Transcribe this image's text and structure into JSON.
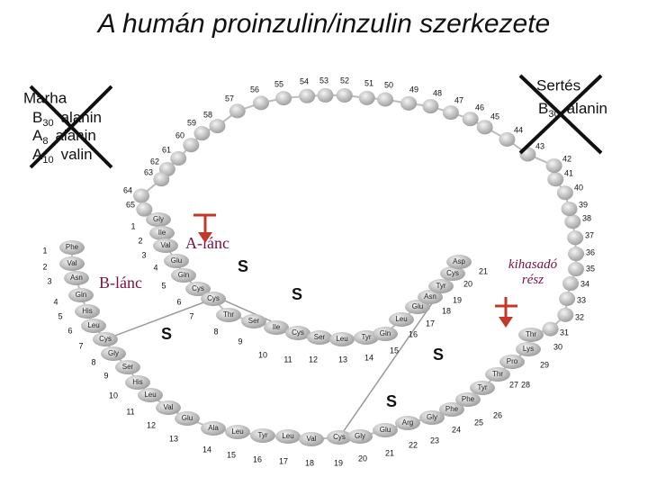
{
  "title": "A humán proinzulin/inzulin szerkezete",
  "notes": {
    "bovine": {
      "title": "Marha",
      "lines": [
        {
          "chain": "B",
          "position": "30",
          "residue": "alanin"
        },
        {
          "chain": "A",
          "position": "8",
          "residue": "alanin"
        },
        {
          "chain": "A",
          "position": "10",
          "residue": "valin"
        }
      ]
    },
    "porcine": {
      "title": "Sertés",
      "lines": [
        {
          "chain": "B",
          "position": "30",
          "residue": "alanin"
        }
      ]
    }
  },
  "labels": {
    "a_chain": "A-lánc",
    "b_chain": "B-lánc",
    "cleaved": "kihasadó rész"
  },
  "disulfides": [
    "S",
    "S",
    "S",
    "S",
    "S"
  ],
  "a_chain": {
    "residues": [
      "Gly",
      "Ile",
      "Val",
      "Glu",
      "Gln",
      "Cys",
      "Cys",
      "Thr",
      "Ser",
      "Ile",
      "Cys",
      "Ser",
      "Leu",
      "Tyr",
      "Gln",
      "Leu",
      "Glu",
      "Asn",
      "Tyr",
      "Cys",
      "Asp"
    ],
    "numbers": [
      1,
      2,
      3,
      4,
      5,
      6,
      7,
      8,
      9,
      10,
      11,
      12,
      13,
      14,
      15,
      16,
      17,
      18,
      19,
      20,
      21
    ]
  },
  "b_chain": {
    "residues": [
      "Phe",
      "Val",
      "Asn",
      "Gln",
      "His",
      "Leu",
      "Cys",
      "Gly",
      "Ser",
      "His",
      "Leu",
      "Val",
      "Glu",
      "Ala",
      "Leu",
      "Tyr",
      "Leu",
      "Val",
      "Cys",
      "Gly",
      "Glu",
      "Arg",
      "Gly",
      "Phe",
      "Phe",
      "Tyr",
      "Thr",
      "Pro",
      "Lys",
      "Thr"
    ],
    "numbers": [
      1,
      2,
      3,
      4,
      5,
      6,
      7,
      8,
      9,
      10,
      11,
      12,
      13,
      14,
      15,
      16,
      17,
      18,
      19,
      20,
      21,
      22,
      23,
      24,
      25,
      26,
      27,
      28,
      29,
      30
    ]
  },
  "c_peptide": {
    "numbers": [
      31,
      32,
      33,
      34,
      35,
      36,
      37,
      38,
      39,
      40,
      41,
      42,
      43,
      44,
      45,
      46,
      47,
      48,
      49,
      50,
      51,
      52,
      53,
      54,
      55,
      56,
      57,
      58,
      59,
      60,
      61,
      62,
      63,
      64,
      65
    ]
  }
}
